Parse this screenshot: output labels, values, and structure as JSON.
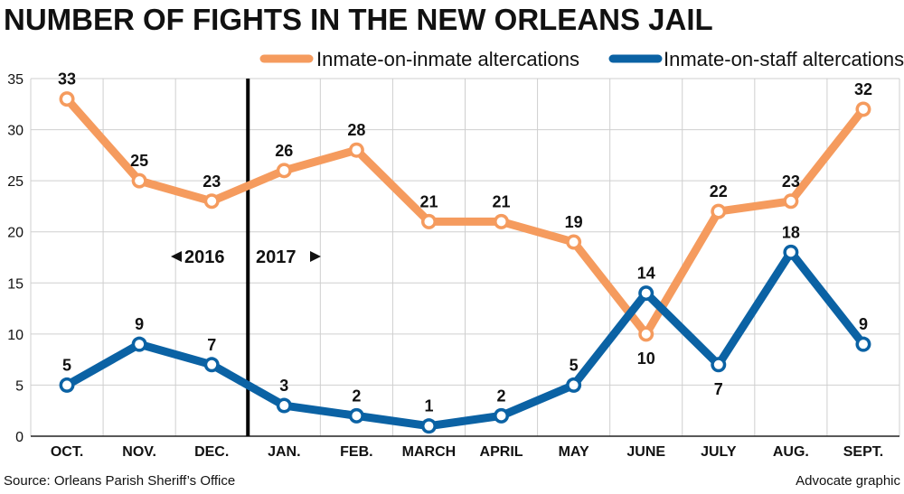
{
  "chart_data": {
    "type": "line",
    "title": "NUMBER OF FIGHTS IN THE NEW ORLEANS JAIL",
    "categories": [
      "OCT.",
      "NOV.",
      "DEC.",
      "JAN.",
      "FEB.",
      "MARCH",
      "APRIL",
      "MAY",
      "JUNE",
      "JULY",
      "AUG.",
      "SEPT."
    ],
    "series": [
      {
        "name": "Inmate-on-inmate altercations",
        "color": "#f59b5e",
        "values": [
          33,
          25,
          23,
          26,
          28,
          21,
          21,
          19,
          10,
          22,
          23,
          32
        ],
        "label_positions": [
          "above",
          "above",
          "above",
          "above",
          "above",
          "above",
          "above",
          "above",
          "below",
          "above",
          "above",
          "above"
        ]
      },
      {
        "name": "Inmate-on-staff altercations",
        "color": "#0b62a4",
        "values": [
          5,
          9,
          7,
          3,
          2,
          1,
          2,
          5,
          14,
          7,
          18,
          9
        ],
        "label_positions": [
          "above",
          "above",
          "above",
          "above",
          "above",
          "above",
          "above",
          "above",
          "above",
          "below",
          "above",
          "above"
        ]
      }
    ],
    "ylim": [
      0,
      35
    ],
    "yticks": [
      0,
      5,
      10,
      15,
      20,
      25,
      30,
      35
    ],
    "grid": true,
    "year_divider": {
      "after_category": "DEC.",
      "left_label": "2016",
      "right_label": "2017"
    },
    "legend_position": "top-right",
    "xlabel": "",
    "ylabel": ""
  },
  "footer": {
    "source": "Source: Orleans Parish Sheriff’s Office",
    "credit": "Advocate graphic"
  }
}
